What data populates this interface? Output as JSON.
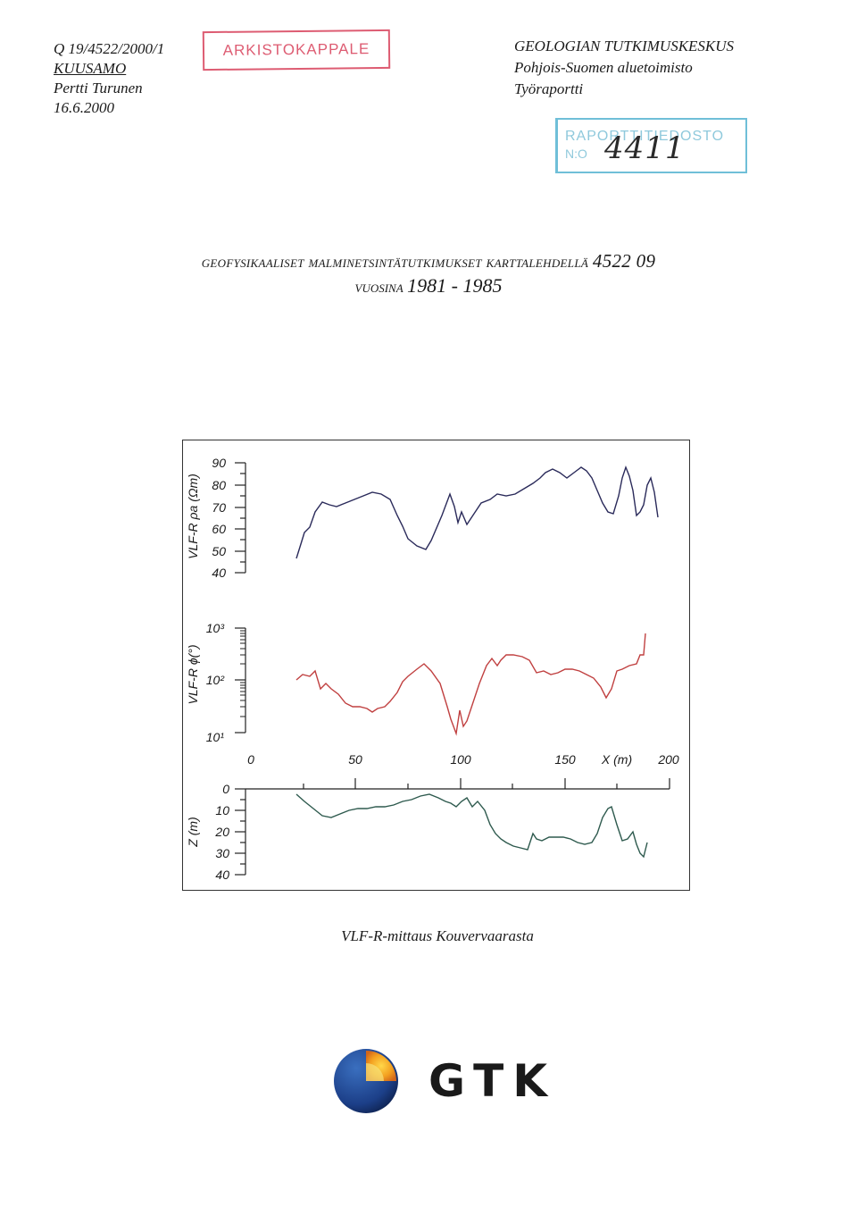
{
  "header_left": {
    "code": "Q 19/4522/2000/1",
    "location": "KUUSAMO",
    "author": "Pertti Turunen",
    "date": "16.6.2000"
  },
  "stamp_archive": "ARKISTOKAPPALE",
  "header_right": {
    "org": "GEOLOGIAN TUTKIMUSKESKUS",
    "office": "Pohjois-Suomen aluetoimisto",
    "type": "Työraportti"
  },
  "stamp_report": {
    "label": "RAPORTTITIEDOSTO",
    "no_label": "N:O",
    "number": "4411"
  },
  "title": {
    "line1_a": "Geofysikaaliset malminetsintätutkimukset karttalehdellä",
    "line1_b": "4522 09",
    "line2_a": "vuosina",
    "line2_b": "1981 - 1985"
  },
  "figure": {
    "panel1_label": "VLF-R ρa (Ωm)",
    "panel1_ticks": [
      "90",
      "80",
      "70",
      "60",
      "50",
      "40"
    ],
    "panel2_label": "VLF-R ϕ(°)",
    "panel2_ticks": [
      "10³",
      "10²",
      "10¹"
    ],
    "panel3_label": "Z (m)",
    "panel3_ticks": [
      "0",
      "10",
      "20",
      "30",
      "40"
    ],
    "x_ticks": [
      "0",
      "50",
      "100",
      "150"
    ],
    "x_label": "X (m)",
    "x_last_tick": "200",
    "colors": {
      "panel1": "#2a2a5a",
      "panel2": "#c04040",
      "panel3": "#2e5a4e"
    }
  },
  "caption": "VLF-R-mittaus Kouvervaarasta",
  "logo_text": "GTK"
}
